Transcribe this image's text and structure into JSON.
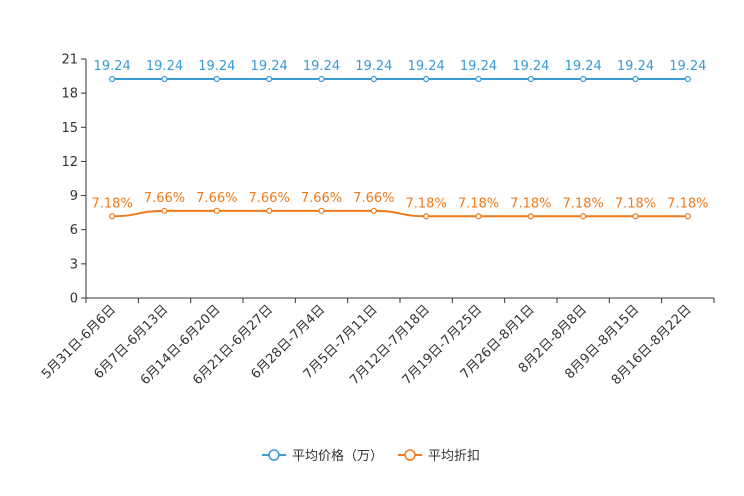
{
  "chart_data": {
    "type": "line",
    "categories": [
      "5月31日-6月6日",
      "6月7日-6月13日",
      "6月14日-6月20日",
      "6月21日-6月27日",
      "6月28日-7月4日",
      "7月5日-7月11日",
      "7月12日-7月18日",
      "7月19日-7月25日",
      "7月26日-8月1日",
      "8月2日-8月8日",
      "8月9日-8月15日",
      "8月16日-8月22日"
    ],
    "ylim": [
      0,
      21
    ],
    "yticks": [
      0,
      3,
      6,
      9,
      12,
      15,
      18,
      21
    ],
    "ytick_labels": [
      "0",
      "3",
      "6",
      "9",
      "12",
      "15",
      "18",
      "21"
    ],
    "series": [
      {
        "name": "平均价格（万）",
        "color": "#3a9bd5",
        "values": [
          19.24,
          19.24,
          19.24,
          19.24,
          19.24,
          19.24,
          19.24,
          19.24,
          19.24,
          19.24,
          19.24,
          19.24
        ],
        "labels": [
          "19.24",
          "19.24",
          "19.24",
          "19.24",
          "19.24",
          "19.24",
          "19.24",
          "19.24",
          "19.24",
          "19.24",
          "19.24",
          "19.24"
        ]
      },
      {
        "name": "平均折扣",
        "color": "#f07a1a",
        "values": [
          7.18,
          7.66,
          7.66,
          7.66,
          7.66,
          7.66,
          7.18,
          7.18,
          7.18,
          7.18,
          7.18,
          7.18
        ],
        "labels": [
          "7.18%",
          "7.66%",
          "7.66%",
          "7.66%",
          "7.66%",
          "7.66%",
          "7.18%",
          "7.18%",
          "7.18%",
          "7.18%",
          "7.18%",
          "7.18%"
        ]
      }
    ],
    "legend_position": "bottom-center",
    "grid": false
  }
}
